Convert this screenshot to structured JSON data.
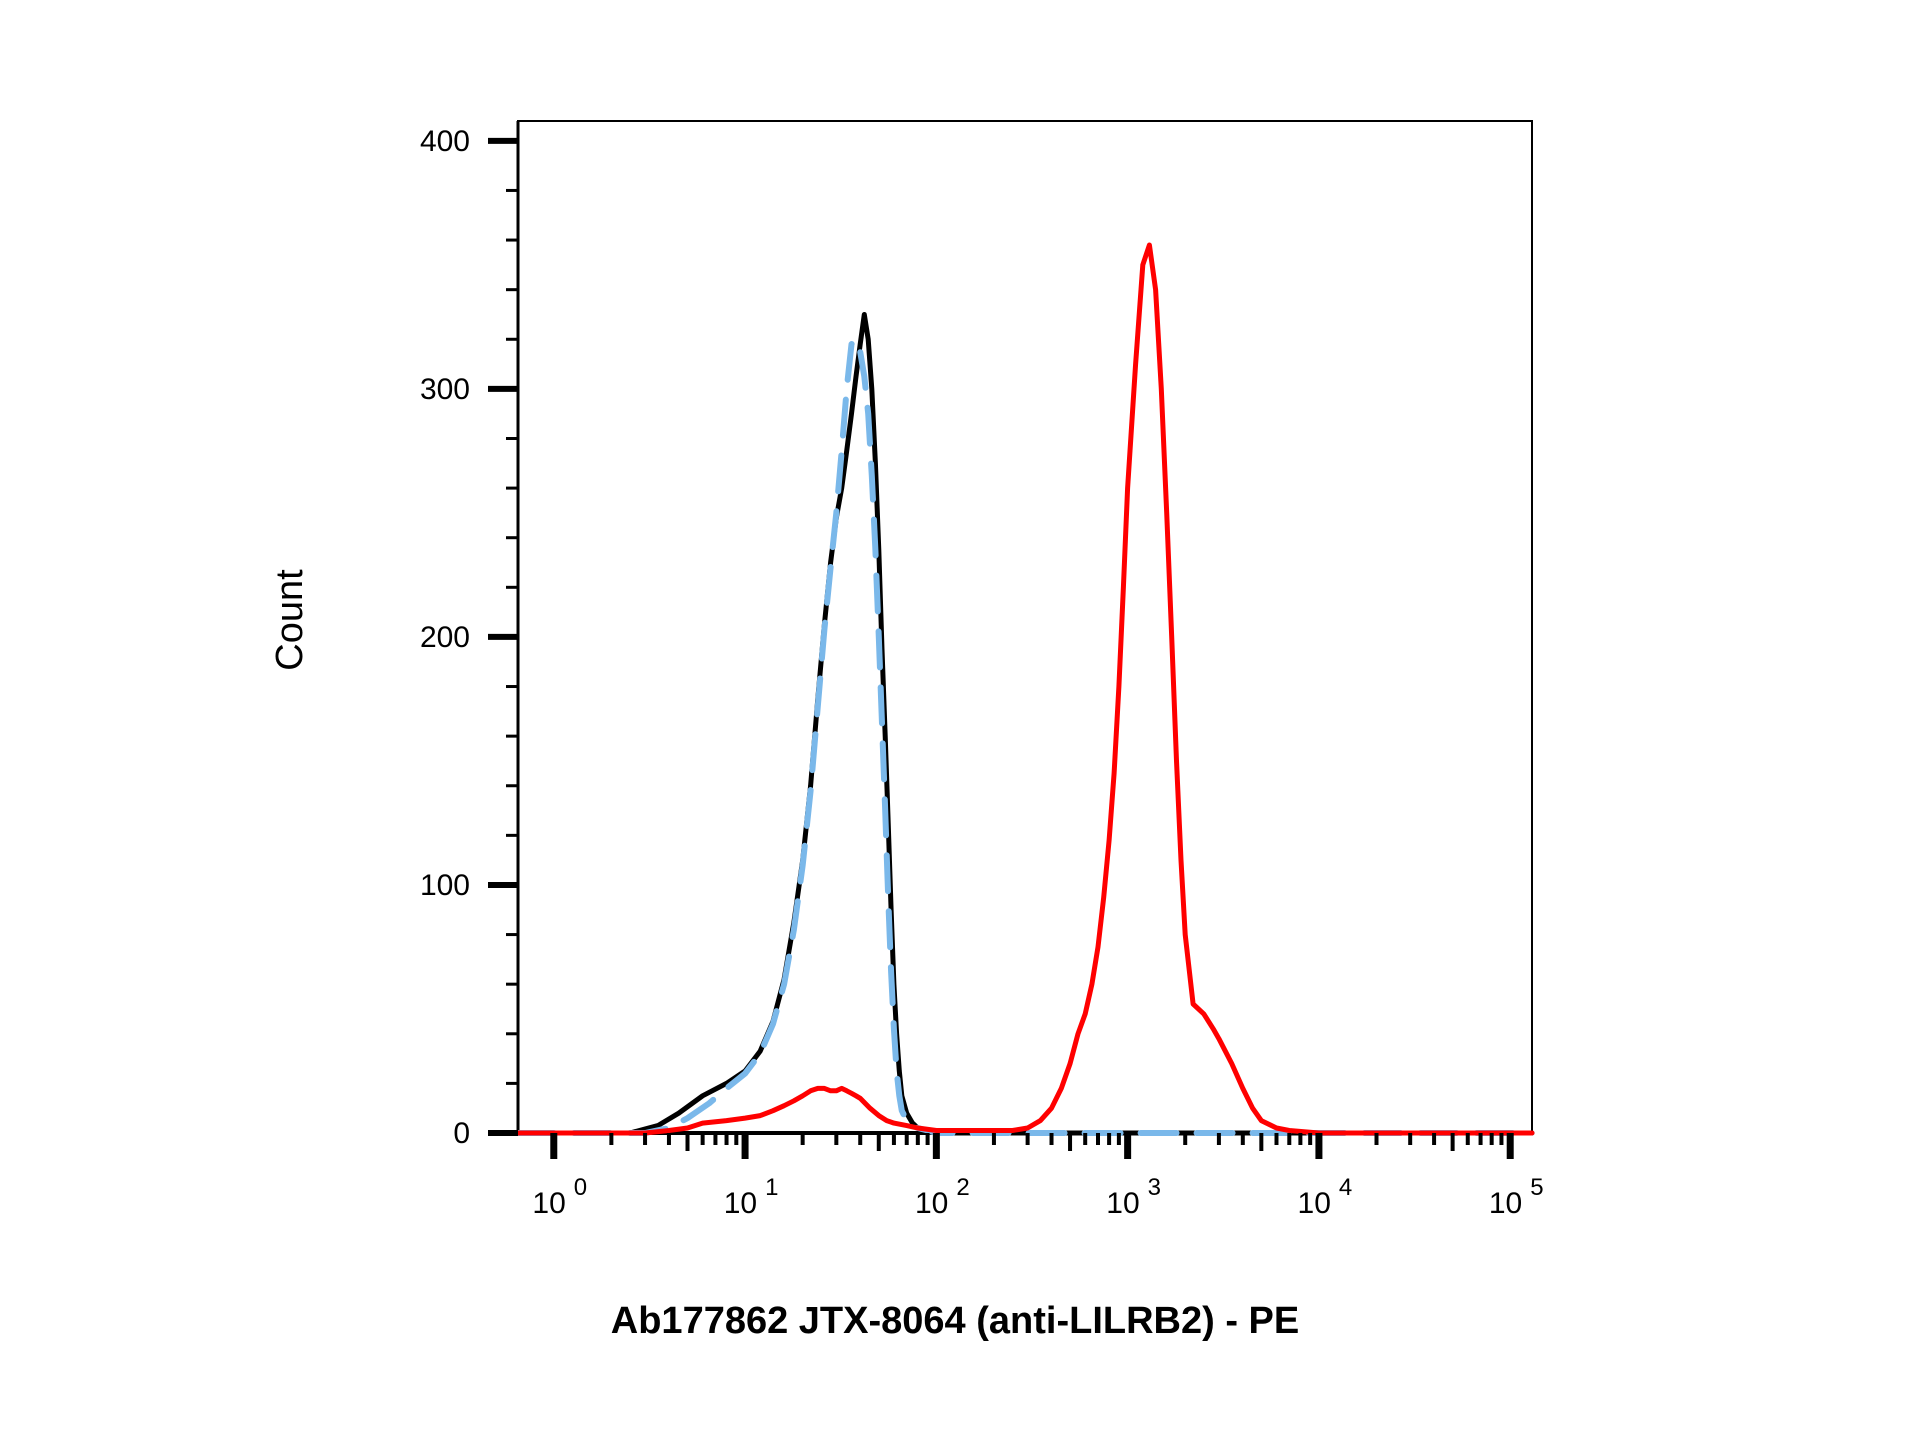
{
  "chart_data": {
    "type": "line",
    "title": "",
    "xlabel": "Ab177862 JTX-8064 (anti-LILRB2) - PE",
    "ylabel": "Count",
    "x_scale": "log",
    "xlim": [
      0.65,
      130000
    ],
    "ylim": [
      0,
      408
    ],
    "x_ticks": [
      {
        "value": 1,
        "base": "10",
        "exp": "0"
      },
      {
        "value": 10,
        "base": "10",
        "exp": "1"
      },
      {
        "value": 100,
        "base": "10",
        "exp": "2"
      },
      {
        "value": 1000,
        "base": "10",
        "exp": "3"
      },
      {
        "value": 10000,
        "base": "10",
        "exp": "4"
      },
      {
        "value": 100000,
        "base": "10",
        "exp": "5"
      }
    ],
    "y_ticks": [
      {
        "value": 0,
        "label": "0"
      },
      {
        "value": 100,
        "label": "100"
      },
      {
        "value": 200,
        "label": "200"
      },
      {
        "value": 300,
        "label": "300"
      },
      {
        "value": 400,
        "label": "400"
      }
    ],
    "grid": false,
    "legend": "none",
    "series": [
      {
        "color": "#000000",
        "dash": "solid",
        "x": [
          0.65,
          2.5,
          3.5,
          4.5,
          6,
          8,
          10,
          12,
          14,
          16,
          18,
          20,
          22,
          24,
          26,
          28,
          30,
          32,
          34,
          36,
          38,
          40,
          42,
          44,
          46,
          48,
          50,
          52,
          54,
          56,
          58,
          60,
          62,
          64,
          66,
          70,
          75,
          80,
          90,
          100,
          150,
          1000,
          100000,
          130000
        ],
        "y": [
          0,
          0,
          3,
          8,
          15,
          20,
          25,
          33,
          45,
          62,
          85,
          110,
          140,
          175,
          205,
          230,
          248,
          260,
          275,
          290,
          305,
          318,
          330,
          320,
          300,
          270,
          235,
          195,
          160,
          125,
          90,
          60,
          40,
          25,
          15,
          8,
          4,
          2,
          1,
          0,
          0,
          0,
          0,
          0
        ]
      },
      {
        "color": "#7ab8ea",
        "dash": "dashed",
        "x": [
          0.65,
          3,
          4,
          5,
          6.5,
          8,
          10,
          12,
          14,
          16,
          18,
          20,
          22,
          24,
          26,
          28,
          30,
          32,
          34,
          36,
          38,
          40,
          42,
          44,
          46,
          48,
          50,
          52,
          54,
          56,
          58,
          60,
          62,
          64,
          66,
          70,
          75,
          80,
          90,
          100,
          150,
          1000,
          100000,
          130000
        ],
        "y": [
          0,
          0,
          2,
          6,
          12,
          18,
          24,
          32,
          44,
          60,
          82,
          108,
          138,
          172,
          203,
          228,
          250,
          275,
          300,
          318,
          320,
          315,
          305,
          290,
          265,
          235,
          200,
          165,
          130,
          95,
          65,
          42,
          25,
          15,
          9,
          5,
          3,
          2,
          1,
          0,
          0,
          0,
          0,
          0
        ]
      },
      {
        "color": "#ff0000",
        "dash": "solid",
        "x": [
          0.65,
          3,
          4,
          5,
          6,
          8,
          10,
          12,
          14,
          16,
          18,
          20,
          22,
          24,
          26,
          28,
          30,
          32,
          34,
          36,
          38,
          40,
          45,
          50,
          55,
          60,
          70,
          80,
          100,
          150,
          200,
          250,
          300,
          350,
          400,
          450,
          500,
          550,
          600,
          650,
          700,
          750,
          800,
          850,
          900,
          950,
          1000,
          1100,
          1200,
          1300,
          1400,
          1500,
          1600,
          1700,
          1800,
          1900,
          2000,
          2200,
          2500,
          2800,
          3000,
          3500,
          4000,
          4500,
          5000,
          6000,
          7000,
          10000,
          130000
        ],
        "y": [
          0,
          0,
          1,
          2,
          4,
          5,
          6,
          7,
          9,
          11,
          13,
          15,
          17,
          18,
          18,
          17,
          17,
          18,
          17,
          16,
          15,
          14,
          10,
          7,
          5,
          4,
          3,
          2,
          1,
          1,
          1,
          1,
          2,
          5,
          10,
          18,
          28,
          40,
          48,
          60,
          75,
          95,
          118,
          145,
          180,
          220,
          260,
          310,
          350,
          358,
          340,
          300,
          250,
          200,
          150,
          110,
          80,
          52,
          48,
          42,
          38,
          28,
          18,
          10,
          5,
          2,
          1,
          0,
          0
        ]
      }
    ]
  }
}
